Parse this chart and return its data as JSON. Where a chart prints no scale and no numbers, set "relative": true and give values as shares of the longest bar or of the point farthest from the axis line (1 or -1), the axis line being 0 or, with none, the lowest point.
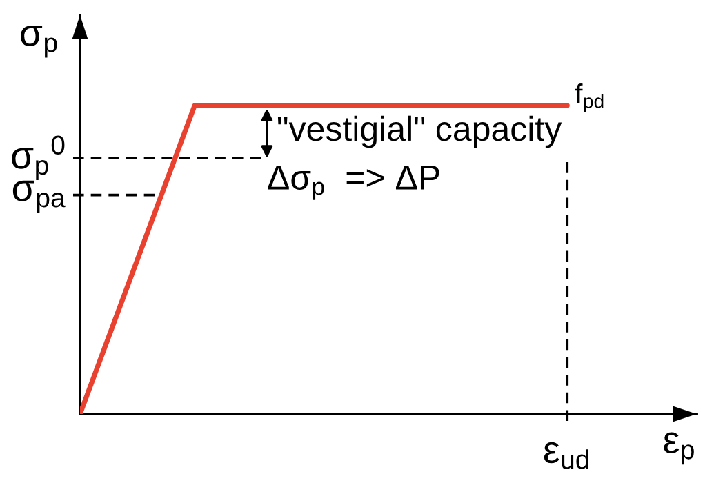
{
  "chart_data": {
    "type": "line",
    "relative": true,
    "categories": [
      null,
      null,
      null,
      null,
      null,
      null,
      null,
      null,
      null,
      null,
      null,
      null,
      null,
      null,
      null,
      null,
      null,
      null
    ],
    "series": [
      {
        "color": "#e8412f",
        "values": [
          0,
          0.25,
          0.5,
          0.75,
          1,
          1,
          1,
          1,
          1,
          1,
          1,
          1,
          1,
          1,
          1,
          1,
          1,
          1
        ]
      }
    ],
    "xlabel": "ε$_{p}$",
    "ylabel": "σ$_{p}$",
    "ref_lines": [
      {
        "axis": "y",
        "value": 0.83,
        "label": "σ$_{p}$$^{0}$",
        "line_style": "dashed",
        "color": "#000000"
      },
      {
        "axis": "y",
        "value": 0.71,
        "label": "σ$_{pa}$",
        "line_style": "dashed",
        "color": "#000000"
      }
    ],
    "annotations": [
      "f$_{pd}$",
      "ε$_{ud}$",
      "\"vestigial\" capacity",
      "Δσ$_{p}$  => ΔP"
    ]
  }
}
